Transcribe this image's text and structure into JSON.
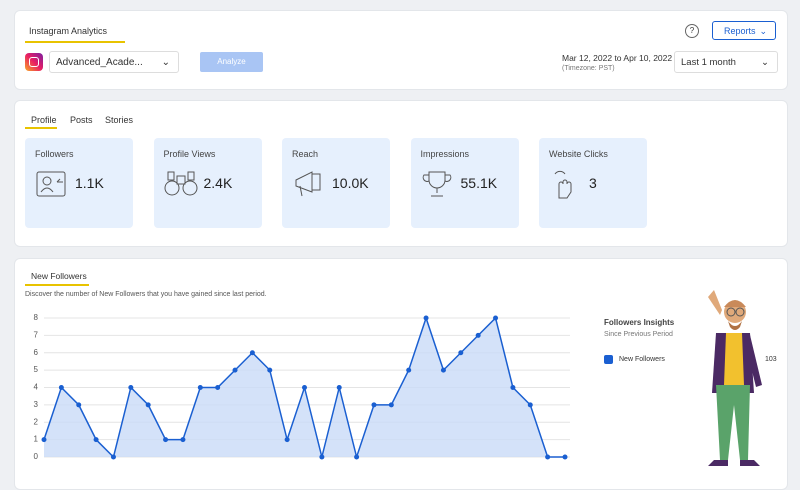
{
  "header": {
    "title": "Instagram Analytics",
    "help": "?",
    "reports": "Reports",
    "account": "Advanced_Acade...",
    "analyze": "Analyze",
    "date_range": "Mar 12, 2022 to Apr 10, 2022",
    "timezone": "(Timezone: PST)",
    "period": "Last 1 month"
  },
  "tabs": [
    "Profile",
    "Posts",
    "Stories"
  ],
  "metrics": [
    {
      "label": "Followers",
      "value": "1.1K"
    },
    {
      "label": "Profile Views",
      "value": "2.4K"
    },
    {
      "label": "Reach",
      "value": "10.0K"
    },
    {
      "label": "Impressions",
      "value": "55.1K"
    },
    {
      "label": "Website Clicks",
      "value": "3"
    }
  ],
  "new_followers": {
    "title": "New Followers",
    "description": "Discover the number of New Followers that you have gained since last period."
  },
  "insights": {
    "title": "Followers Insights",
    "subtitle": "Since Previous Period",
    "legend": "New Followers",
    "total": 103
  },
  "chart_data": {
    "type": "area",
    "color": "#1a5fd1",
    "fill": "#c9dbf7",
    "values": [
      1,
      4,
      3,
      1,
      0,
      4,
      3,
      1,
      1,
      4,
      4,
      5,
      6,
      5,
      1,
      4,
      0,
      4,
      0,
      3,
      3,
      5,
      8,
      5,
      6,
      7,
      8,
      4,
      3,
      0,
      0
    ],
    "ylim": [
      0,
      8
    ],
    "yticks": [
      0,
      1,
      2,
      3,
      4,
      5,
      6,
      7,
      8
    ],
    "grid": true
  }
}
